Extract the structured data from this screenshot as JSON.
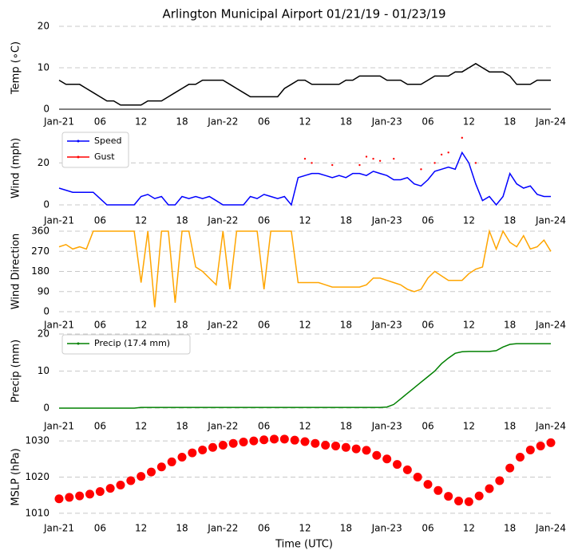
{
  "chart_data": [
    {
      "type": "line",
      "title": "Arlington Municipal Airport 01/21/19 - 01/23/19",
      "ylabel": "Temp (∘C)",
      "x": [
        0,
        1,
        2,
        3,
        4,
        5,
        6,
        7,
        8,
        9,
        10,
        11,
        12,
        13,
        14,
        15,
        16,
        17,
        18,
        19,
        20,
        21,
        22,
        23,
        24,
        25,
        26,
        27,
        28,
        29,
        30,
        31,
        32,
        33,
        34,
        35,
        36,
        37,
        38,
        39,
        40,
        41,
        42,
        43,
        44,
        45,
        46,
        47,
        48,
        49,
        50,
        51,
        52,
        53,
        54,
        55,
        56,
        57,
        58,
        59,
        60,
        61,
        62,
        63,
        64,
        65,
        66,
        67,
        68,
        69,
        70,
        71,
        72
      ],
      "series": [
        {
          "name": "Temp",
          "color": "#000000",
          "style": "line",
          "values": [
            7,
            6,
            6,
            6,
            5,
            4,
            3,
            2,
            2,
            1,
            1,
            1,
            1,
            2,
            2,
            2,
            3,
            4,
            5,
            6,
            6,
            7,
            7,
            7,
            7,
            6,
            5,
            4,
            3,
            3,
            3,
            3,
            3,
            5,
            6,
            7,
            7,
            6,
            6,
            6,
            6,
            6,
            7,
            7,
            8,
            8,
            8,
            8,
            7,
            7,
            7,
            6,
            6,
            6,
            7,
            8,
            8,
            8,
            9,
            9,
            10,
            11,
            10,
            9,
            9,
            9,
            8,
            6,
            6,
            6,
            7,
            7,
            7
          ]
        }
      ],
      "xlim": [
        0,
        72
      ],
      "xticks": [
        {
          "value": 0,
          "label": "Jan-21"
        },
        {
          "value": 6,
          "label": "06"
        },
        12,
        18,
        {
          "value": 24,
          "label": "Jan-22"
        },
        {
          "value": 30,
          "label": "06"
        },
        {
          "value": 36,
          "label": "12"
        },
        {
          "value": 42,
          "label": "18"
        },
        {
          "value": 48,
          "label": "Jan-23"
        },
        {
          "value": 54,
          "label": "06"
        },
        {
          "value": 60,
          "label": "12"
        },
        {
          "value": 66,
          "label": "18"
        },
        {
          "value": 72,
          "label": "Jan-24"
        }
      ],
      "ylim": [
        0,
        20
      ],
      "yticks": [
        0,
        10,
        20
      ],
      "grid": true
    },
    {
      "type": "line",
      "ylabel": "Wind (mph)",
      "legend": "upper left",
      "x": [
        0,
        1,
        2,
        3,
        4,
        5,
        6,
        7,
        8,
        9,
        10,
        11,
        12,
        13,
        14,
        15,
        16,
        17,
        18,
        19,
        20,
        21,
        22,
        23,
        24,
        25,
        26,
        27,
        28,
        29,
        30,
        31,
        32,
        33,
        34,
        35,
        36,
        37,
        38,
        39,
        40,
        41,
        42,
        43,
        44,
        45,
        46,
        47,
        48,
        49,
        50,
        51,
        52,
        53,
        54,
        55,
        56,
        57,
        58,
        59,
        60,
        61,
        62,
        63,
        64,
        65,
        66,
        67,
        68,
        69,
        70,
        71,
        72
      ],
      "series": [
        {
          "name": "Speed",
          "color": "#0000ff",
          "style": "line",
          "values": [
            8,
            7,
            6,
            6,
            6,
            6,
            3,
            0,
            0,
            0,
            0,
            0,
            4,
            5,
            3,
            4,
            0,
            0,
            4,
            3,
            4,
            3,
            4,
            2,
            0,
            0,
            0,
            0,
            4,
            3,
            5,
            4,
            3,
            4,
            0,
            13,
            14,
            15,
            15,
            14,
            13,
            14,
            13,
            15,
            15,
            14,
            16,
            15,
            14,
            12,
            12,
            13,
            10,
            9,
            12,
            16,
            17,
            18,
            17,
            25,
            20,
            10,
            2,
            4,
            0,
            4,
            15,
            10,
            8,
            9,
            5,
            4,
            4
          ]
        },
        {
          "name": "Gust",
          "color": "#ff0000",
          "style": "dots",
          "values": [
            null,
            null,
            null,
            null,
            null,
            null,
            null,
            null,
            null,
            null,
            null,
            null,
            null,
            null,
            null,
            null,
            null,
            null,
            null,
            null,
            null,
            null,
            null,
            null,
            null,
            null,
            null,
            null,
            null,
            null,
            null,
            null,
            null,
            null,
            null,
            null,
            22,
            20,
            null,
            null,
            19,
            null,
            null,
            null,
            19,
            23,
            22,
            21,
            null,
            22,
            null,
            null,
            null,
            17,
            null,
            20,
            24,
            25,
            null,
            32,
            null,
            20,
            null,
            null,
            null,
            null,
            null,
            null,
            null,
            null,
            null,
            null,
            null
          ]
        }
      ],
      "xlim": [
        0,
        72
      ],
      "xticks": [
        {
          "value": 0,
          "label": "Jan-21"
        },
        {
          "value": 6,
          "label": "06"
        },
        12,
        18,
        {
          "value": 24,
          "label": "Jan-22"
        },
        {
          "value": 30,
          "label": "06"
        },
        {
          "value": 36,
          "label": "12"
        },
        {
          "value": 42,
          "label": "18"
        },
        {
          "value": 48,
          "label": "Jan-23"
        },
        {
          "value": 54,
          "label": "06"
        },
        {
          "value": 60,
          "label": "12"
        },
        {
          "value": 66,
          "label": "18"
        },
        {
          "value": 72,
          "label": "Jan-24"
        }
      ],
      "ylim": [
        0,
        35
      ],
      "yticks": [
        0,
        20
      ],
      "grid": true
    },
    {
      "type": "line",
      "ylabel": "Wind Direction",
      "x": [
        0,
        1,
        2,
        3,
        4,
        5,
        6,
        7,
        8,
        9,
        10,
        11,
        12,
        13,
        14,
        15,
        16,
        17,
        18,
        19,
        20,
        21,
        22,
        23,
        24,
        25,
        26,
        27,
        28,
        29,
        30,
        31,
        32,
        33,
        34,
        35,
        36,
        37,
        38,
        39,
        40,
        41,
        42,
        43,
        44,
        45,
        46,
        47,
        48,
        49,
        50,
        51,
        52,
        53,
        54,
        55,
        56,
        57,
        58,
        59,
        60,
        61,
        62,
        63,
        64,
        65,
        66,
        67,
        68,
        69,
        70,
        71,
        72
      ],
      "series": [
        {
          "name": "Direction",
          "color": "#ffa500",
          "style": "line",
          "values": [
            290,
            300,
            280,
            290,
            280,
            360,
            360,
            360,
            360,
            360,
            360,
            360,
            130,
            360,
            20,
            360,
            360,
            40,
            360,
            360,
            200,
            180,
            150,
            120,
            360,
            100,
            360,
            360,
            360,
            360,
            100,
            360,
            360,
            360,
            360,
            130,
            130,
            130,
            130,
            120,
            110,
            110,
            110,
            110,
            110,
            120,
            150,
            150,
            140,
            130,
            120,
            100,
            90,
            100,
            150,
            180,
            160,
            140,
            140,
            140,
            170,
            190,
            200,
            360,
            280,
            360,
            310,
            290,
            340,
            280,
            290,
            320,
            270
          ]
        }
      ],
      "xlim": [
        0,
        72
      ],
      "xticks": [
        {
          "value": 0,
          "label": "Jan-21"
        },
        {
          "value": 6,
          "label": "06"
        },
        12,
        18,
        {
          "value": 24,
          "label": "Jan-22"
        },
        {
          "value": 30,
          "label": "06"
        },
        {
          "value": 36,
          "label": "12"
        },
        {
          "value": 42,
          "label": "18"
        },
        {
          "value": 48,
          "label": "Jan-23"
        },
        {
          "value": 54,
          "label": "06"
        },
        {
          "value": 60,
          "label": "12"
        },
        {
          "value": 66,
          "label": "18"
        },
        {
          "value": 72,
          "label": "Jan-24"
        }
      ],
      "ylim": [
        0,
        360
      ],
      "yticks": [
        0,
        90,
        180,
        270,
        360
      ],
      "grid": true
    },
    {
      "type": "line",
      "ylabel": "Precip (mm)",
      "legend": "upper left",
      "x": [
        0,
        1,
        2,
        3,
        4,
        5,
        6,
        7,
        8,
        9,
        10,
        11,
        12,
        13,
        14,
        15,
        16,
        17,
        18,
        19,
        20,
        21,
        22,
        23,
        24,
        25,
        26,
        27,
        28,
        29,
        30,
        31,
        32,
        33,
        34,
        35,
        36,
        37,
        38,
        39,
        40,
        41,
        42,
        43,
        44,
        45,
        46,
        47,
        48,
        49,
        50,
        51,
        52,
        53,
        54,
        55,
        56,
        57,
        58,
        59,
        60,
        61,
        62,
        63,
        64,
        65,
        66,
        67,
        68,
        69,
        70,
        71,
        72
      ],
      "series": [
        {
          "name": "Precip (17.4 mm)",
          "color": "#008000",
          "style": "line",
          "values": [
            0,
            0,
            0,
            0,
            0,
            0,
            0,
            0,
            0,
            0,
            0,
            0,
            0.2,
            0.2,
            0.2,
            0.2,
            0.2,
            0.2,
            0.2,
            0.2,
            0.2,
            0.2,
            0.2,
            0.2,
            0.2,
            0.2,
            0.2,
            0.2,
            0.2,
            0.2,
            0.2,
            0.2,
            0.2,
            0.2,
            0.2,
            0.2,
            0.2,
            0.2,
            0.2,
            0.2,
            0.2,
            0.2,
            0.2,
            0.2,
            0.2,
            0.2,
            0.2,
            0.2,
            0.3,
            1,
            2.5,
            4,
            5.5,
            7,
            8.5,
            10,
            12,
            13.5,
            14.8,
            15.2,
            15.3,
            15.3,
            15.3,
            15.3,
            15.5,
            16.5,
            17.2,
            17.4,
            17.4,
            17.4,
            17.4,
            17.4,
            17.4
          ]
        }
      ],
      "xlim": [
        0,
        72
      ],
      "xticks": [
        {
          "value": 0,
          "label": "Jan-21"
        },
        {
          "value": 6,
          "label": "06"
        },
        12,
        18,
        {
          "value": 24,
          "label": "Jan-22"
        },
        {
          "value": 30,
          "label": "06"
        },
        {
          "value": 36,
          "label": "12"
        },
        {
          "value": 42,
          "label": "18"
        },
        {
          "value": 48,
          "label": "Jan-23"
        },
        {
          "value": 54,
          "label": "06"
        },
        {
          "value": 60,
          "label": "12"
        },
        {
          "value": 66,
          "label": "18"
        },
        {
          "value": 72,
          "label": "Jan-24"
        }
      ],
      "ylim": [
        0,
        20
      ],
      "yticks": [
        0,
        10,
        20
      ],
      "grid": true
    },
    {
      "type": "line",
      "ylabel": "MSLP (hPa)",
      "xlabel": "Time (UTC)",
      "x": [
        0,
        1.5,
        3,
        4.5,
        6,
        7.5,
        9,
        10.5,
        12,
        13.5,
        15,
        16.5,
        18,
        19.5,
        21,
        22.5,
        24,
        25.5,
        27,
        28.5,
        30,
        31.5,
        33,
        34.5,
        36,
        37.5,
        39,
        40.5,
        42,
        43.5,
        45,
        46.5,
        48,
        49.5,
        51,
        52.5,
        54,
        55.5,
        57,
        58.5,
        60,
        61.5,
        63,
        64.5,
        66,
        67.5,
        69,
        70.5,
        72
      ],
      "series": [
        {
          "name": "MSLP",
          "color": "#ff0000",
          "style": "dots",
          "values": [
            1014,
            1014.4,
            1014.8,
            1015.3,
            1016,
            1016.9,
            1017.8,
            1019,
            1020.2,
            1021.4,
            1022.8,
            1024.2,
            1025.5,
            1026.7,
            1027.5,
            1028.2,
            1028.8,
            1029.3,
            1029.7,
            1030,
            1030.3,
            1030.5,
            1030.5,
            1030.2,
            1029.8,
            1029.3,
            1028.8,
            1028.6,
            1028.2,
            1027.8,
            1027.4,
            1026,
            1025,
            1023.5,
            1022,
            1020,
            1018,
            1016.3,
            1014.7,
            1013.4,
            1013.2,
            1014.8,
            1016.8,
            1019,
            1022.5,
            1025.5,
            1027.5,
            1028.6,
            1029.5
          ]
        }
      ],
      "xlim": [
        0,
        72
      ],
      "xticks": [
        {
          "value": 0,
          "label": "Jan-21"
        },
        {
          "value": 6,
          "label": "06"
        },
        12,
        18,
        {
          "value": 24,
          "label": "Jan-22"
        },
        {
          "value": 30,
          "label": "06"
        },
        {
          "value": 36,
          "label": "12"
        },
        {
          "value": 42,
          "label": "18"
        },
        {
          "value": 48,
          "label": "Jan-23"
        },
        {
          "value": 54,
          "label": "06"
        },
        {
          "value": 60,
          "label": "12"
        },
        {
          "value": 66,
          "label": "18"
        },
        {
          "value": 72,
          "label": "Jan-24"
        }
      ],
      "ylim": [
        1008,
        1032
      ],
      "yticks": [
        1010,
        1020,
        1030
      ],
      "grid": true
    }
  ]
}
